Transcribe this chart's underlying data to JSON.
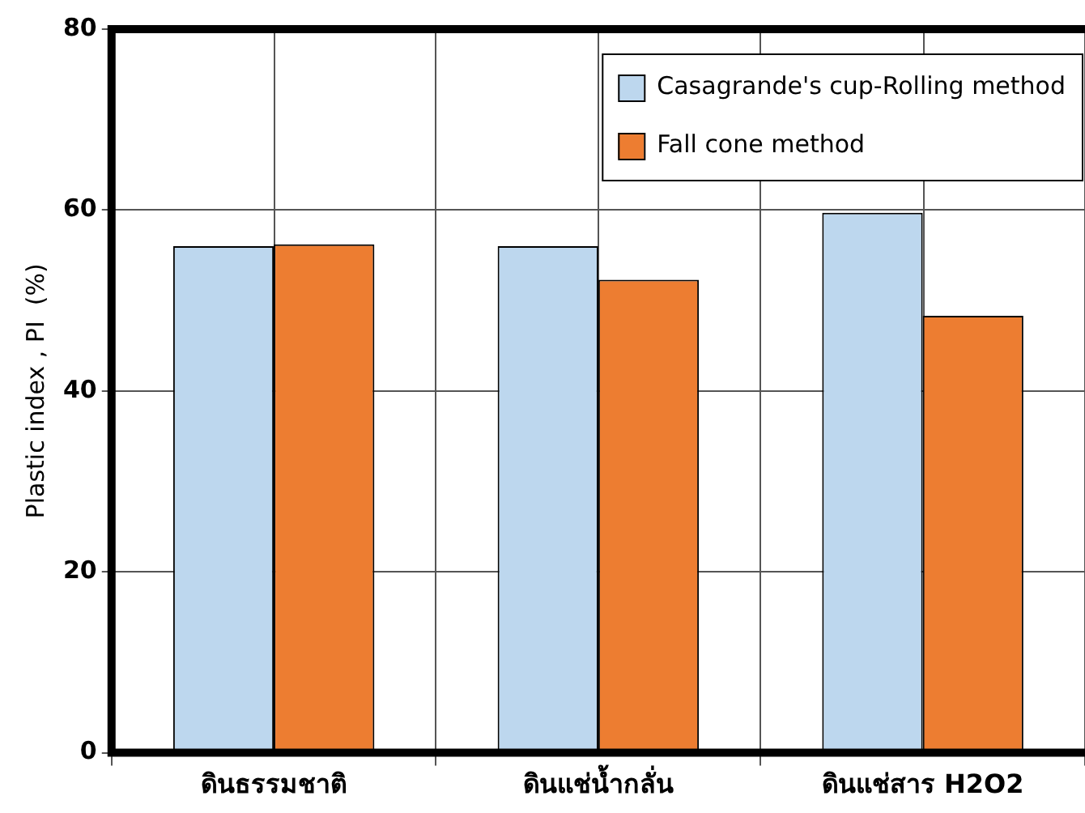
{
  "chart_data": {
    "type": "bar",
    "ylabel": "Plastic index , PI  (%)",
    "categories": [
      "ดินธรรมชาติ",
      "ดินแช่น้ำกลั่น",
      "ดินแช่สาร H2O2"
    ],
    "series": [
      {
        "name": "Casagrande's cup-Rolling method",
        "color": "#bdd7ee",
        "values": [
          56,
          56,
          59.7
        ]
      },
      {
        "name": "Fall cone method",
        "color": "#ed7d31",
        "values": [
          56.2,
          52.3,
          48.3
        ]
      }
    ],
    "ylim": [
      0,
      80
    ],
    "yticks": [
      0,
      20,
      40,
      60,
      80
    ],
    "grid": true,
    "legend": "top right"
  }
}
